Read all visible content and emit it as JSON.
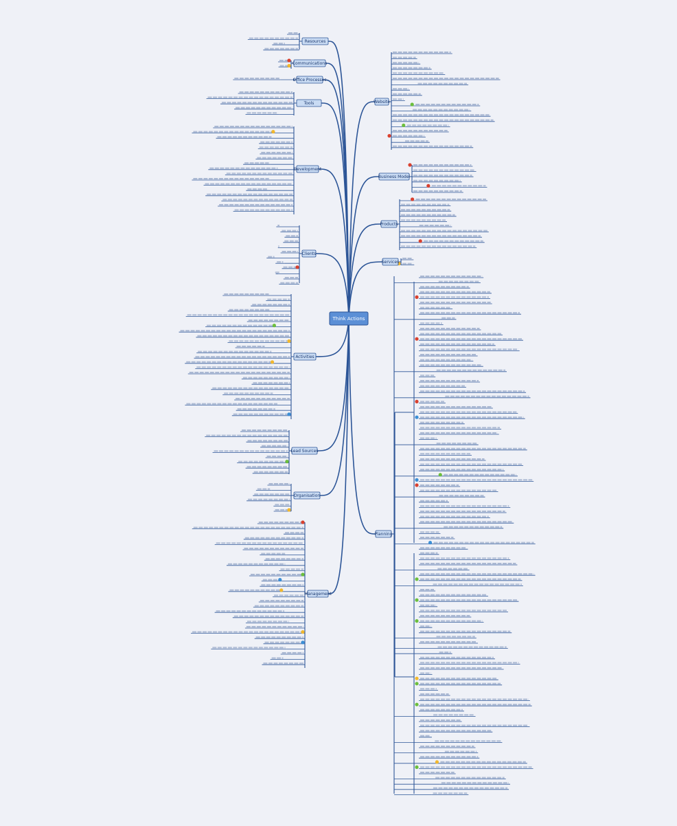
{
  "center": "Think Actions",
  "branches": [
    {
      "label": "Resources"
    },
    {
      "label": "Communications"
    },
    {
      "label": "Office Processes"
    },
    {
      "label": "Tools"
    },
    {
      "label": "Development"
    },
    {
      "label": "Clients"
    },
    {
      "label": "Activities"
    },
    {
      "label": "Lead Sources"
    },
    {
      "label": "Organisation"
    },
    {
      "label": "Management"
    },
    {
      "label": "Website"
    },
    {
      "label": "Business Model"
    },
    {
      "label": "Products"
    },
    {
      "label": "Services"
    },
    {
      "label": "Planning"
    }
  ]
}
